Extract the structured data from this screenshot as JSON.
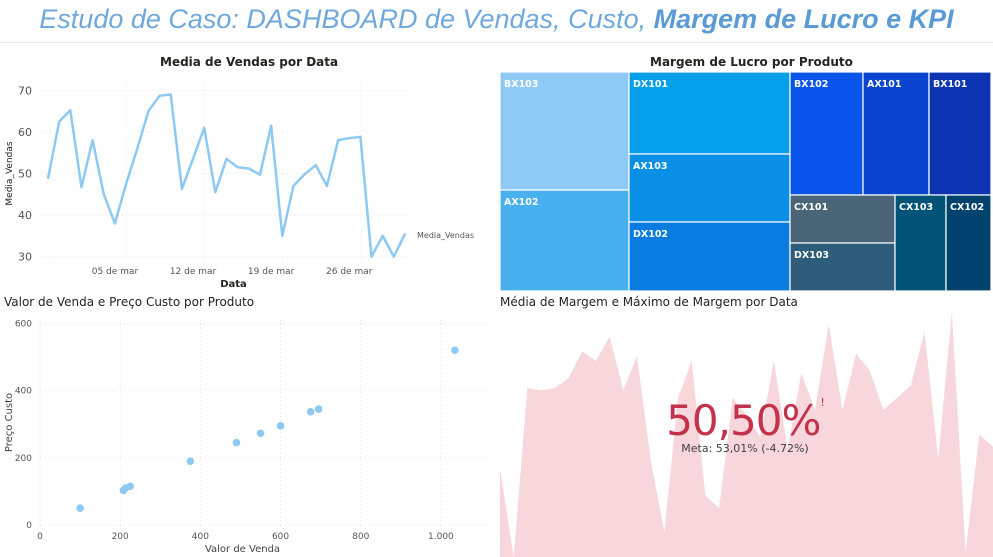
{
  "title": {
    "part1": "Estudo de Caso: DASHBOARD de Vendas, Custo, ",
    "part2": "Margem de Lucro e KPI"
  },
  "colors": {
    "line": "#8ec9f2",
    "scatter": "#8ec9f2",
    "kpi": "#c4314b",
    "area": "#f7d7dc"
  },
  "chart_data": [
    {
      "type": "line",
      "title": "Media de Vendas por Data",
      "xlabel": "Data",
      "ylabel": "Media_Vendas",
      "series_label": "Media_Vendas",
      "x_ticks": [
        "05 de mar",
        "12 de mar",
        "19 de mar",
        "26 de mar"
      ],
      "y_ticks": [
        30,
        40,
        50,
        60,
        70
      ],
      "ylim": [
        28,
        72
      ],
      "x": [
        "2023-02-27",
        "2023-02-28",
        "2023-03-01",
        "2023-03-02",
        "2023-03-03",
        "2023-03-04",
        "2023-03-05",
        "2023-03-06",
        "2023-03-07",
        "2023-03-08",
        "2023-03-09",
        "2023-03-10",
        "2023-03-11",
        "2023-03-12",
        "2023-03-13",
        "2023-03-14",
        "2023-03-15",
        "2023-03-16",
        "2023-03-17",
        "2023-03-18",
        "2023-03-19",
        "2023-03-20",
        "2023-03-21",
        "2023-03-22",
        "2023-03-23",
        "2023-03-24",
        "2023-03-25",
        "2023-03-26",
        "2023-03-27",
        "2023-03-28",
        "2023-03-29",
        "2023-03-30",
        "2023-03-31"
      ],
      "values": [
        48.8,
        62.5,
        65.2,
        46.7,
        58,
        45,
        38,
        47.5,
        56,
        65,
        68.7,
        69,
        46.3,
        53.5,
        61,
        45.5,
        53.5,
        51.5,
        51.2,
        49.7,
        61.5,
        35,
        47,
        49.8,
        52,
        47,
        58,
        58.5,
        58.8,
        30,
        35,
        30,
        35.5
      ]
    },
    {
      "type": "treemap",
      "title": "Margem de Lucro por Produto",
      "items": [
        {
          "label": "BX103",
          "color": "#8fc9f5"
        },
        {
          "label": "AX102",
          "color": "#48b0ee"
        },
        {
          "label": "DX101",
          "color": "#06a0ea"
        },
        {
          "label": "AX103",
          "color": "#0a8fe6"
        },
        {
          "label": "DX102",
          "color": "#0a7ce0"
        },
        {
          "label": "BX102",
          "color": "#0a55ea"
        },
        {
          "label": "AX101",
          "color": "#0b44cf"
        },
        {
          "label": "BX101",
          "color": "#0c34b3"
        },
        {
          "label": "CX101",
          "color": "#4a6478"
        },
        {
          "label": "DX103",
          "color": "#2e5d7c"
        },
        {
          "label": "CX103",
          "color": "#015478"
        },
        {
          "label": "CX102",
          "color": "#01426e"
        }
      ]
    },
    {
      "type": "scatter",
      "title": "Valor de Venda e Preço Custo por Produto",
      "xlabel": "Valor de Venda",
      "ylabel": "Preço Custo",
      "x_ticks": [
        {
          "v": 0,
          "t": "0"
        },
        {
          "v": 200,
          "t": "200"
        },
        {
          "v": 400,
          "t": "400"
        },
        {
          "v": 600,
          "t": "600"
        },
        {
          "v": 800,
          "t": "800"
        },
        {
          "v": 1000,
          "t": "1.000"
        }
      ],
      "y_ticks": [
        {
          "v": 0,
          "t": "0"
        },
        {
          "v": 200,
          "t": "200"
        },
        {
          "v": 400,
          "t": "400"
        },
        {
          "v": 600,
          "t": "600"
        }
      ],
      "xlim": [
        0,
        1110
      ],
      "ylim": [
        0,
        610
      ],
      "points": [
        [
          100,
          50
        ],
        [
          208,
          103
        ],
        [
          213,
          110
        ],
        [
          225,
          115
        ],
        [
          375,
          190
        ],
        [
          490,
          245
        ],
        [
          550,
          273
        ],
        [
          600,
          295
        ],
        [
          675,
          337
        ],
        [
          695,
          345
        ],
        [
          1035,
          520
        ]
      ]
    },
    {
      "type": "area",
      "title": "Média de Margem e Máximo de Margem por Data",
      "kpi_value": "50,50%",
      "kpi_marker": "!",
      "kpi_goal": "Meta: 53,01% (-4.72%)",
      "ylim": [
        0,
        100
      ],
      "values": [
        36,
        0,
        69,
        68,
        69,
        73,
        84,
        80,
        90,
        68,
        82,
        40,
        10,
        65,
        80,
        25,
        20,
        65,
        58,
        49,
        80,
        44,
        75,
        60,
        95,
        60,
        83,
        76,
        60,
        65,
        70,
        92,
        40,
        100,
        2,
        50,
        45
      ]
    }
  ]
}
